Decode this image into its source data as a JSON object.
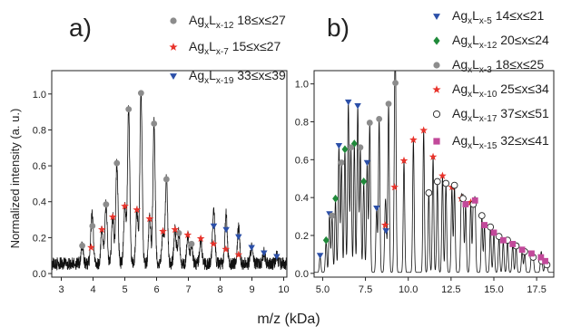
{
  "figure": {
    "xlabel": "m/z (kDa)",
    "ylabel": "Normalized intensity (a. u.)"
  },
  "chart_data": [
    {
      "panel_label": "a)",
      "type": "line",
      "xlim": [
        2.7,
        10.1
      ],
      "ylim": [
        -0.02,
        1.13
      ],
      "xticks": [
        3,
        4,
        5,
        6,
        7,
        8,
        9,
        10
      ],
      "yticks": [
        0.0,
        0.2,
        0.4,
        0.6,
        0.8,
        1.0
      ],
      "tick_decimals": 0,
      "ytick_decimals": 1,
      "noise_level": 0.07,
      "series": [
        {
          "name": "AgxLx-12 18≤x≤27",
          "marker": "circle",
          "color": "#8c8c8c",
          "points": [
            [
              3.66,
              0.15
            ],
            [
              3.98,
              0.26
            ],
            [
              4.41,
              0.38
            ],
            [
              4.75,
              0.61
            ],
            [
              5.12,
              0.91
            ],
            [
              5.51,
              1.0
            ],
            [
              5.92,
              0.83
            ],
            [
              6.31,
              0.52
            ],
            [
              6.7,
              0.22
            ],
            [
              7.1,
              0.16
            ]
          ]
        },
        {
          "name": "AgxLx-7 15≤x≤27",
          "marker": "star",
          "color": "#e8332b",
          "points": [
            [
              3.94,
              0.14
            ],
            [
              4.28,
              0.24
            ],
            [
              4.62,
              0.31
            ],
            [
              5.0,
              0.37
            ],
            [
              5.38,
              0.35
            ],
            [
              5.78,
              0.3
            ],
            [
              6.2,
              0.23
            ],
            [
              6.58,
              0.24
            ],
            [
              6.98,
              0.21
            ],
            [
              7.39,
              0.19
            ],
            [
              7.79,
              0.16
            ],
            [
              8.18,
              0.13
            ],
            [
              8.58,
              0.1
            ]
          ]
        },
        {
          "name": "AgxLx-19 33≤x≤39",
          "marker": "triangle-down",
          "color": "#2b4fa8",
          "points": [
            [
              7.8,
              0.26
            ],
            [
              8.19,
              0.24
            ],
            [
              8.58,
              0.2
            ],
            [
              8.99,
              0.14
            ],
            [
              9.38,
              0.11
            ],
            [
              9.78,
              0.09
            ]
          ]
        }
      ]
    },
    {
      "panel_label": "b)",
      "type": "line",
      "xlim": [
        4.5,
        18.5
      ],
      "ylim": [
        -0.02,
        1.07
      ],
      "xticks": [
        5.0,
        7.5,
        10.0,
        12.5,
        15.0,
        17.5
      ],
      "yticks": [
        0.0,
        0.2,
        0.4,
        0.6,
        0.8,
        1.0
      ],
      "tick_decimals": 1,
      "ytick_decimals": 1,
      "noise_level": 0.0,
      "series": [
        {
          "name": "AgxLx-5 14≤x≤21",
          "marker": "triangle-down",
          "color": "#2b4fa8",
          "points": [
            [
              4.85,
              0.09
            ],
            [
              5.4,
              0.31
            ],
            [
              5.95,
              0.67
            ],
            [
              6.5,
              0.9
            ],
            [
              7.05,
              0.88
            ],
            [
              7.6,
              0.58
            ],
            [
              8.15,
              0.34
            ],
            [
              8.7,
              0.22
            ]
          ]
        },
        {
          "name": "AgxLx-12 20≤x≤24",
          "marker": "diamond",
          "color": "#1f8a3a",
          "points": [
            [
              5.2,
              0.17
            ],
            [
              5.75,
              0.39
            ],
            [
              6.3,
              0.65
            ],
            [
              6.85,
              0.68
            ],
            [
              7.4,
              0.48
            ]
          ]
        },
        {
          "name": "AgxLx-3 18≤x≤25",
          "marker": "circle",
          "color": "#8c8c8c",
          "points": [
            [
              5.55,
              0.3
            ],
            [
              6.1,
              0.58
            ],
            [
              6.65,
              0.66
            ],
            [
              7.2,
              0.66
            ],
            [
              7.75,
              0.79
            ],
            [
              8.3,
              0.81
            ],
            [
              8.85,
              0.89
            ],
            [
              9.25,
              1.0
            ]
          ]
        },
        {
          "name": "AgxLx-10 25≤x≤34",
          "marker": "star",
          "color": "#e8332b",
          "points": [
            [
              8.65,
              0.25
            ],
            [
              9.2,
              0.45
            ],
            [
              9.75,
              0.59
            ],
            [
              10.3,
              0.7
            ],
            [
              10.9,
              0.75
            ],
            [
              11.45,
              0.61
            ],
            [
              12.0,
              0.51
            ],
            [
              12.55,
              0.45
            ],
            [
              13.1,
              0.39
            ],
            [
              13.65,
              0.37
            ]
          ]
        },
        {
          "name": "AgxLx-17 37≤x≤51",
          "marker": "circle-open",
          "color": "#222222",
          "points": [
            [
              11.2,
              0.42
            ],
            [
              11.7,
              0.48
            ],
            [
              12.2,
              0.47
            ],
            [
              12.7,
              0.46
            ],
            [
              13.2,
              0.39
            ],
            [
              13.8,
              0.36
            ],
            [
              14.3,
              0.3
            ],
            [
              14.8,
              0.24
            ],
            [
              15.3,
              0.19
            ],
            [
              15.8,
              0.17
            ],
            [
              16.3,
              0.14
            ],
            [
              16.8,
              0.11
            ],
            [
              17.3,
              0.08
            ],
            [
              17.8,
              0.06
            ],
            [
              18.1,
              0.04
            ]
          ]
        },
        {
          "name": "AgxLx-15 32≤x≤41",
          "marker": "square",
          "color": "#c2499a",
          "points": [
            [
              13.35,
              0.36
            ],
            [
              13.9,
              0.38
            ],
            [
              14.45,
              0.25
            ],
            [
              15.0,
              0.21
            ],
            [
              15.55,
              0.17
            ],
            [
              16.1,
              0.15
            ],
            [
              16.65,
              0.12
            ],
            [
              17.2,
              0.1
            ],
            [
              17.75,
              0.08
            ],
            [
              18.0,
              0.06
            ]
          ]
        }
      ]
    }
  ]
}
